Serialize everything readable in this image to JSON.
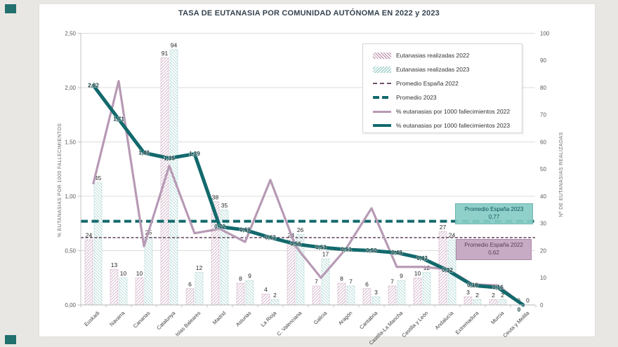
{
  "chart_data": {
    "type": "combo-bar-line",
    "title": "TASA DE EUTANASIA POR COMUNIDAD AUTÓNOMA EN 2022 y 2023",
    "categories": [
      "Euskadi",
      "Navarra",
      "Canarias",
      "Catalunya",
      "Islas Baleares",
      "Madrid",
      "Asturias",
      "La Rioja",
      "C. Valenciana",
      "Galicia",
      "Aragón",
      "Cantabria",
      "Castilla-La Mancha",
      "Castilla y León",
      "Andalucía",
      "Extremadura",
      "Murcia",
      "Ceuta y Melilla"
    ],
    "left_axis": {
      "title": "% EUTANASIAS POR 1000 FALLECIMIENTOS",
      "min": 0,
      "max": 2.5,
      "ticks": [
        "0,00",
        "0,50",
        "1,00",
        "1,50",
        "2,00",
        "2,50"
      ]
    },
    "right_axis": {
      "title": "Nº DE EUTANASIAS REALIZADAS",
      "min": 0,
      "max": 100,
      "ticks": [
        "0",
        "10",
        "20",
        "30",
        "40",
        "50",
        "60",
        "70",
        "80",
        "90",
        "100"
      ]
    },
    "grid": "horizontal every 0.50 (left) / 20 (right)",
    "legend_position": "upper right, boxed",
    "series": [
      {
        "name": "Eutanasias realizadas 2022",
        "type": "bar",
        "axis": "right",
        "color": "#c49bb6",
        "values": [
          24,
          13,
          10,
          91,
          6,
          38,
          8,
          4,
          24,
          7,
          8,
          6,
          7,
          10,
          27,
          3,
          2,
          0
        ]
      },
      {
        "name": "Eutanasias realizadas 2023",
        "type": "bar",
        "axis": "right",
        "color": "#9bcfca",
        "values": [
          45,
          10,
          25,
          94,
          12,
          35,
          9,
          2,
          26,
          17,
          7,
          3,
          9,
          12,
          24,
          2,
          2,
          0
        ]
      },
      {
        "name": "Promedio España 2022",
        "type": "hline",
        "axis": "left",
        "color": "#6e5168",
        "value": 0.62
      },
      {
        "name": "Promedio 2023",
        "type": "hline",
        "axis": "left",
        "color": "#12696c",
        "value": 0.77
      },
      {
        "name": "% eutanasias por 1000 fallecimientos 2022",
        "type": "line",
        "axis": "left",
        "color": "#b79ab5",
        "values": [
          1.12,
          2.06,
          0.54,
          1.28,
          0.66,
          0.7,
          0.58,
          1.15,
          0.54,
          0.25,
          0.52,
          0.89,
          0.35,
          0.35,
          0.33,
          0.19,
          0.18,
          0
        ]
      },
      {
        "name": "% eutanasias por 1000 fallecimientos 2023",
        "type": "line",
        "axis": "left",
        "color": "#12696c",
        "values": [
          2.02,
          1.71,
          1.4,
          1.35,
          1.39,
          0.72,
          0.69,
          0.62,
          0.56,
          0.53,
          0.51,
          0.5,
          0.48,
          0.43,
          0.32,
          0.18,
          0.16,
          0
        ],
        "labels": [
          "2,02",
          "1,71",
          "1,40",
          "1,35",
          "1,39",
          "0,72",
          "0,69",
          "0,62",
          "0,56",
          "0,53",
          "0,51",
          "0,50",
          "0,48",
          "0,43",
          "0,32",
          "0,18",
          "0,16",
          "0"
        ]
      }
    ],
    "annotations": [
      {
        "label": "Promedio España 2023",
        "value": "0,77"
      },
      {
        "label": "Promedio España 2022",
        "value": "0,62"
      }
    ]
  },
  "legend": {
    "items": [
      {
        "label": "Eutanasias realizadas 2022",
        "swatch": "hatch22"
      },
      {
        "label": "Eutanasias realizadas 2023",
        "swatch": "hatch23"
      },
      {
        "label": "Promedio España 2022",
        "swatch": "dash22"
      },
      {
        "label": "Promedio 2023",
        "swatch": "dash23"
      },
      {
        "label": "% eutanasias por 1000 fallecimientos 2022",
        "swatch": "line22"
      },
      {
        "label": "% eutanasias por 1000 fallecimientos 2023",
        "swatch": "line23"
      }
    ]
  },
  "colors": {
    "bar_2022": "#c49bb6",
    "bar_2023": "#9bcfca",
    "line_2022": "#b79ab5",
    "line_2023": "#12696c",
    "avg_2022": "#6e5168",
    "avg_2023": "#12696c",
    "avg_box_2023_bg": "#85ccc6",
    "avg_box_2022_bg": "#c2a4bf",
    "title_text": "#36434f",
    "page_bg": "#e9e7e3",
    "accent_square": "#20706e"
  }
}
